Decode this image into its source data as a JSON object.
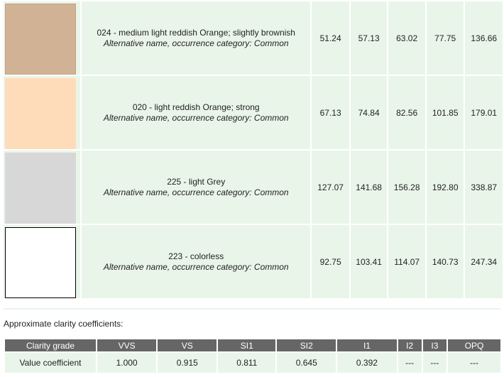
{
  "rows": [
    {
      "swatch_color": "#d2b295",
      "swatch_border": "#c2a284",
      "title": "024 - medium light reddish Orange; slightly brownish",
      "alt": "Alternative name, occurrence category: Common",
      "values": [
        "51.24",
        "57.13",
        "63.02",
        "77.75",
        "136.66"
      ]
    },
    {
      "swatch_color": "#ffdcb9",
      "swatch_border": "#ffdcb9",
      "title": "020 - light reddish Orange; strong",
      "alt": "Alternative name, occurrence category: Common",
      "values": [
        "67.13",
        "74.84",
        "82.56",
        "101.85",
        "179.01"
      ]
    },
    {
      "swatch_color": "#d7d7d7",
      "swatch_border": "#d7d7d7",
      "title": "225 - light Grey",
      "alt": "Alternative name, occurrence category: Common",
      "values": [
        "127.07",
        "141.68",
        "156.28",
        "192.80",
        "338.87"
      ]
    },
    {
      "swatch_color": "#ffffff",
      "swatch_border": "#000000",
      "title": "223 - colorless",
      "alt": "Alternative name, occurrence category: Common",
      "values": [
        "92.75",
        "103.41",
        "114.07",
        "140.73",
        "247.34"
      ]
    }
  ],
  "clarity": {
    "heading": "Approximate clarity coefficients:",
    "headers": [
      "Clarity grade",
      "VVS",
      "VS",
      "SI1",
      "SI2",
      "I1",
      "I2",
      "I3",
      "OPQ"
    ],
    "values": [
      "Value coefficient",
      "1.000",
      "0.915",
      "0.811",
      "0.645",
      "0.392",
      "---",
      "---",
      "---"
    ]
  }
}
